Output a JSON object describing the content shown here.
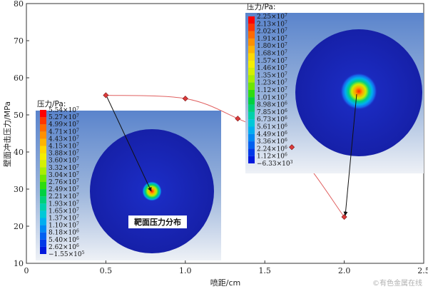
{
  "chart_data": {
    "type": "line",
    "xlabel": "喷距/cm",
    "ylabel": "壁面冲击压力/MPa",
    "xlim": [
      0,
      2.5
    ],
    "ylim": [
      10,
      80
    ],
    "x_ticks": [
      "0",
      "0.5",
      "1.0",
      "1.5",
      "2.0",
      "2.5"
    ],
    "y_ticks": [
      "10",
      "20",
      "30",
      "40",
      "50",
      "60",
      "70",
      "80"
    ],
    "grid": false,
    "series": [
      {
        "color": "#dd3b3b",
        "marker": "diamond",
        "x": [
          0.5,
          1.0,
          1.33,
          1.67,
          2.0
        ],
        "y": [
          55.3,
          54.4,
          49.0,
          41.3,
          22.5
        ]
      }
    ],
    "insets": [
      {
        "legend_title": "压力/Pa:",
        "annotation": "靶面压力分布",
        "legend_values": [
          {
            "m": "5.54×10",
            "e": "7"
          },
          {
            "m": "5.27×10",
            "e": "7"
          },
          {
            "m": "4.99×10",
            "e": "7"
          },
          {
            "m": "4.71×10",
            "e": "7"
          },
          {
            "m": "4.43×10",
            "e": "7"
          },
          {
            "m": "4.15×10",
            "e": "7"
          },
          {
            "m": "3.88×10",
            "e": "7"
          },
          {
            "m": "3.60×10",
            "e": "7"
          },
          {
            "m": "3.32×10",
            "e": "7"
          },
          {
            "m": "3.04×10",
            "e": "7"
          },
          {
            "m": "2.76×10",
            "e": "7"
          },
          {
            "m": "2.49×10",
            "e": "7"
          },
          {
            "m": "2.21×10",
            "e": "7"
          },
          {
            "m": "1.93×10",
            "e": "7"
          },
          {
            "m": "1.65×10",
            "e": "7"
          },
          {
            "m": "1.37×10",
            "e": "7"
          },
          {
            "m": "1.10×10",
            "e": "7"
          },
          {
            "m": "8.18×10",
            "e": "6"
          },
          {
            "m": "5.40×10",
            "e": "6"
          },
          {
            "m": "2.62×10",
            "e": "6"
          },
          {
            "m": "−1.55×10",
            "e": "5"
          }
        ]
      },
      {
        "legend_title": "压力/Pa:",
        "legend_values": [
          {
            "m": "2.25×10",
            "e": "7"
          },
          {
            "m": "2.13×10",
            "e": "7"
          },
          {
            "m": "2.02×10",
            "e": "7"
          },
          {
            "m": "1.91×10",
            "e": "7"
          },
          {
            "m": "1.80×10",
            "e": "7"
          },
          {
            "m": "1.68×10",
            "e": "7"
          },
          {
            "m": "1.57×10",
            "e": "7"
          },
          {
            "m": "1.46×10",
            "e": "7"
          },
          {
            "m": "1.35×10",
            "e": "7"
          },
          {
            "m": "1.23×10",
            "e": "7"
          },
          {
            "m": "1.12×10",
            "e": "7"
          },
          {
            "m": "1.01×10",
            "e": "7"
          },
          {
            "m": "8.98×10",
            "e": "6"
          },
          {
            "m": "7.85×10",
            "e": "6"
          },
          {
            "m": "6.73×10",
            "e": "6"
          },
          {
            "m": "5.61×10",
            "e": "6"
          },
          {
            "m": "4.49×10",
            "e": "6"
          },
          {
            "m": "3.36×10",
            "e": "6"
          },
          {
            "m": "2.24×10",
            "e": "6"
          },
          {
            "m": "1.12×10",
            "e": "6"
          },
          {
            "m": "−6.33×10",
            "e": "3"
          }
        ]
      }
    ],
    "legend_colors": [
      "#ff0000",
      "#ff3600",
      "#ff6a00",
      "#ff9000",
      "#ffb400",
      "#ffd800",
      "#f4ee00",
      "#d4f000",
      "#a8ee00",
      "#6ee600",
      "#2edc10",
      "#00d040",
      "#00d07a",
      "#00d0ac",
      "#00c8d8",
      "#00aef0",
      "#0088f4",
      "#0060f0",
      "#0038e8",
      "#0018dc",
      "#0000c8"
    ]
  },
  "watermark": "©有色金属在线"
}
